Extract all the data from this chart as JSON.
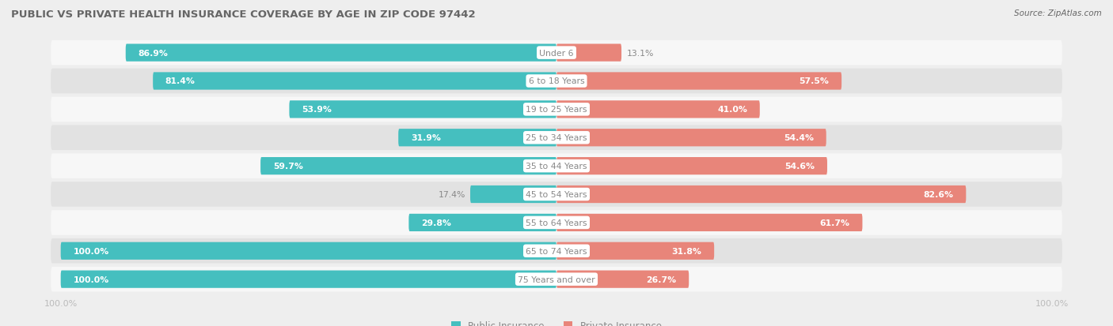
{
  "title": "PUBLIC VS PRIVATE HEALTH INSURANCE COVERAGE BY AGE IN ZIP CODE 97442",
  "source": "Source: ZipAtlas.com",
  "categories": [
    "Under 6",
    "6 to 18 Years",
    "19 to 25 Years",
    "25 to 34 Years",
    "35 to 44 Years",
    "45 to 54 Years",
    "55 to 64 Years",
    "65 to 74 Years",
    "75 Years and over"
  ],
  "public": [
    86.9,
    81.4,
    53.9,
    31.9,
    59.7,
    17.4,
    29.8,
    100.0,
    100.0
  ],
  "private": [
    13.1,
    57.5,
    41.0,
    54.4,
    54.6,
    82.6,
    61.7,
    31.8,
    26.7
  ],
  "public_color": "#45BFBF",
  "private_color": "#E8857A",
  "bg_color": "#eeeeee",
  "row_bg_light": "#f7f7f7",
  "row_bg_dark": "#e2e2e2",
  "title_color": "#666666",
  "label_white": "#ffffff",
  "label_gray": "#888888",
  "cat_label_color": "#888888",
  "axis_label_color": "#bbbbbb",
  "bar_height": 0.62,
  "max_val": 100.0,
  "legend_labels": [
    "Public Insurance",
    "Private Insurance"
  ],
  "inside_threshold": 15.0
}
